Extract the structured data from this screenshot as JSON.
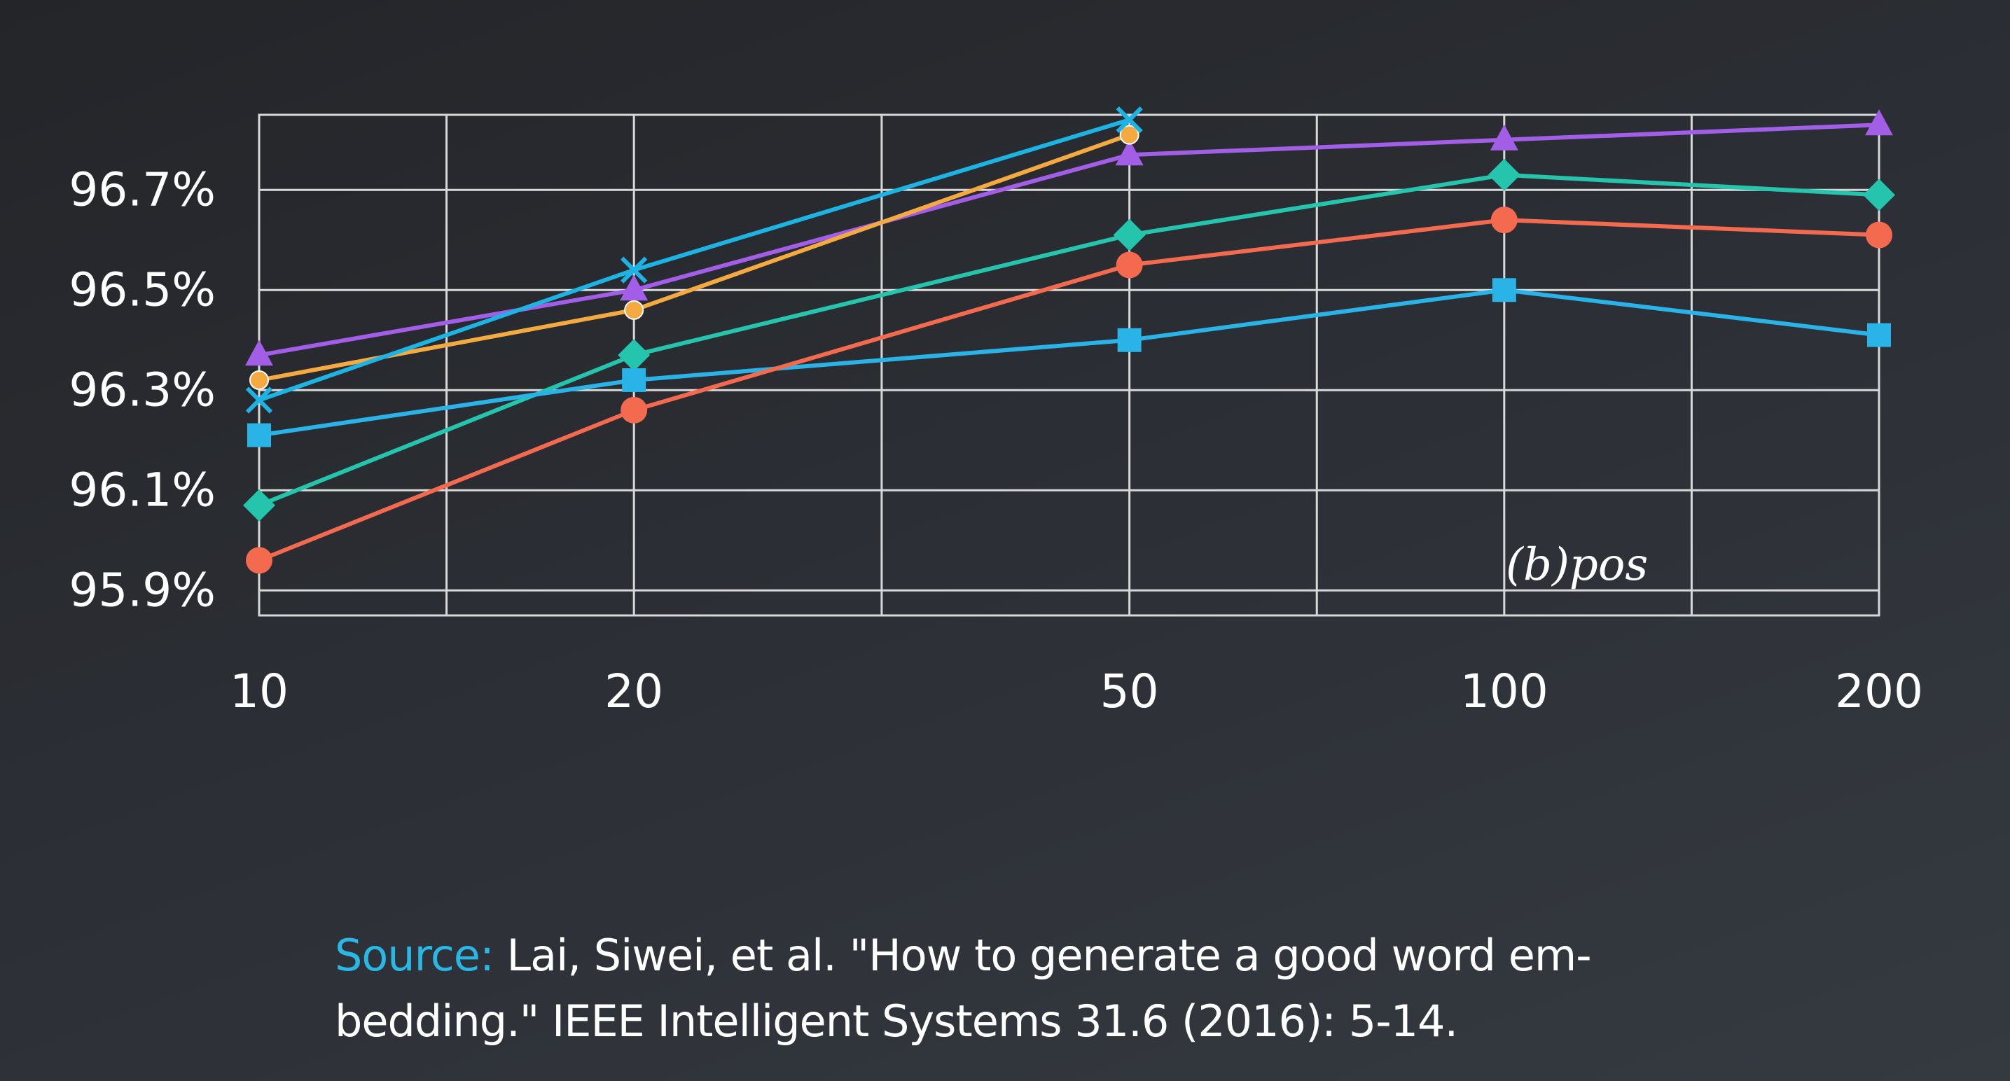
{
  "chart_data": {
    "type": "line",
    "panel_label": "(b)pos",
    "x": [
      10,
      20,
      50,
      100,
      200
    ],
    "x_tick_labels": [
      "10",
      "20",
      "50",
      "100",
      "200"
    ],
    "x_scale": "log",
    "xlim": [
      10,
      200
    ],
    "ylim": [
      95.85,
      96.85
    ],
    "y_ticks": [
      95.9,
      96.1,
      96.3,
      96.5,
      96.7
    ],
    "y_tick_labels": [
      "95.9%",
      "96.1%",
      "96.3%",
      "96.5%",
      "96.7%"
    ],
    "grid": true,
    "series": [
      {
        "color": "#a25ee6",
        "marker": "triangle",
        "values": [
          96.37,
          96.5,
          96.77,
          96.8,
          96.83
        ]
      },
      {
        "color": "#f4aa40",
        "marker": "circle-small",
        "values": [
          96.32,
          96.46,
          96.81,
          null,
          null
        ]
      },
      {
        "color": "#1db3e3",
        "marker": "x",
        "values": [
          96.28,
          96.54,
          96.84,
          null,
          null
        ]
      },
      {
        "color": "#25c4ad",
        "marker": "diamond",
        "values": [
          96.07,
          96.37,
          96.61,
          96.73,
          96.69
        ]
      },
      {
        "color": "#29b3e6",
        "marker": "square",
        "values": [
          96.21,
          96.32,
          96.4,
          96.5,
          96.41
        ]
      },
      {
        "color": "#f36a4f",
        "marker": "circle",
        "values": [
          95.96,
          96.26,
          96.55,
          96.64,
          96.61
        ]
      }
    ]
  },
  "source": {
    "prefix": "Source:",
    "text": " Lai, Siwei, et al. \"How to generate a good word em-bedding.\" IEEE Intelligent Systems 31.6 (2016): 5-14."
  }
}
